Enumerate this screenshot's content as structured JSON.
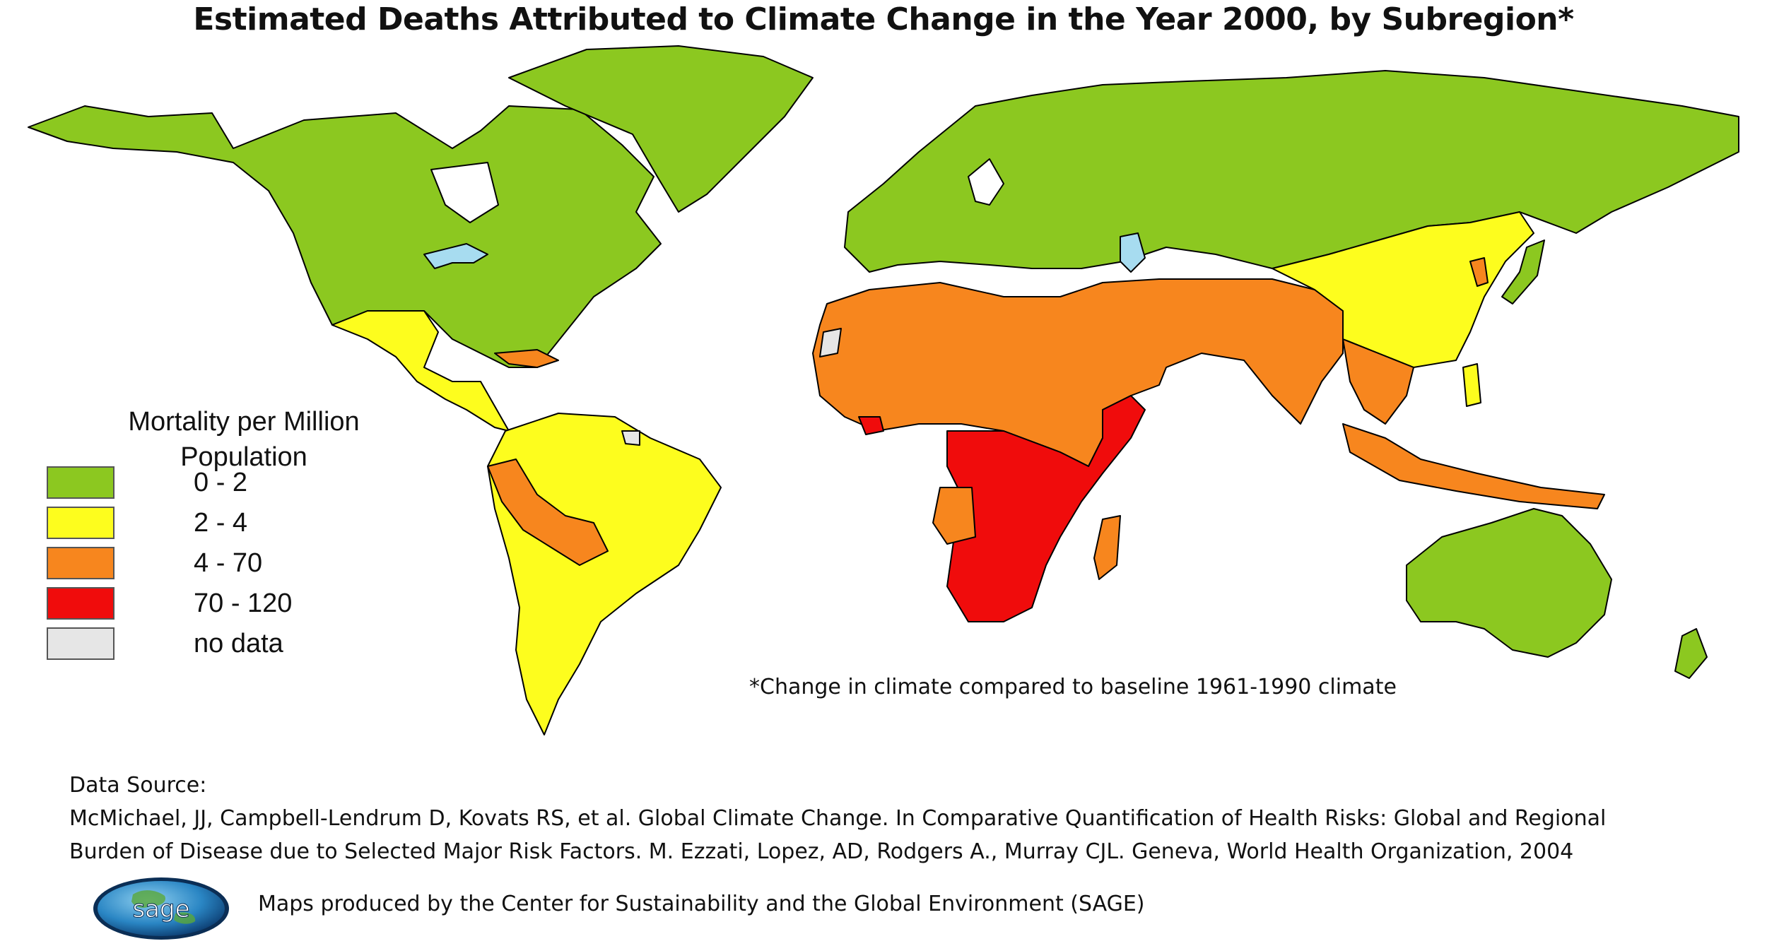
{
  "title": "Estimated Deaths Attributed to Climate Change in the Year 2000, by Subregion*",
  "colors": {
    "green": "#8cc820",
    "yellow": "#fdfd1e",
    "orange": "#f7861e",
    "red": "#f00c0c",
    "nodata": "#e6e6e6",
    "water": "#a7dcf0",
    "border": "#000000"
  },
  "legend": {
    "title": "Mortality per Million Population",
    "title_line1": "Mortality per Million",
    "title_line2": "Population",
    "items": [
      {
        "label": "0 - 2",
        "color": "#8cc820"
      },
      {
        "label": "2 - 4",
        "color": "#fdfd1e"
      },
      {
        "label": "4 - 70",
        "color": "#f7861e"
      },
      {
        "label": "70 - 120",
        "color": "#f00c0c"
      },
      {
        "label": "no data",
        "color": "#e6e6e6"
      }
    ]
  },
  "footnote": "*Change in climate compared to baseline 1961-1990 climate",
  "source": {
    "heading": "Data Source:",
    "line1": "McMichael, JJ, Campbell-Lendrum D, Kovats RS, et al. Global Climate Change. In Comparative Quantification of Health Risks: Global and Regional",
    "line2": "Burden of Disease due to Selected Major Risk Factors. M. Ezzati, Lopez, AD, Rodgers A., Murray CJL. Geneva, World Health Organization, 2004"
  },
  "logo_text": "sage",
  "credit": "Maps produced by the Center for Sustainability and the Global Environment (SAGE)"
}
